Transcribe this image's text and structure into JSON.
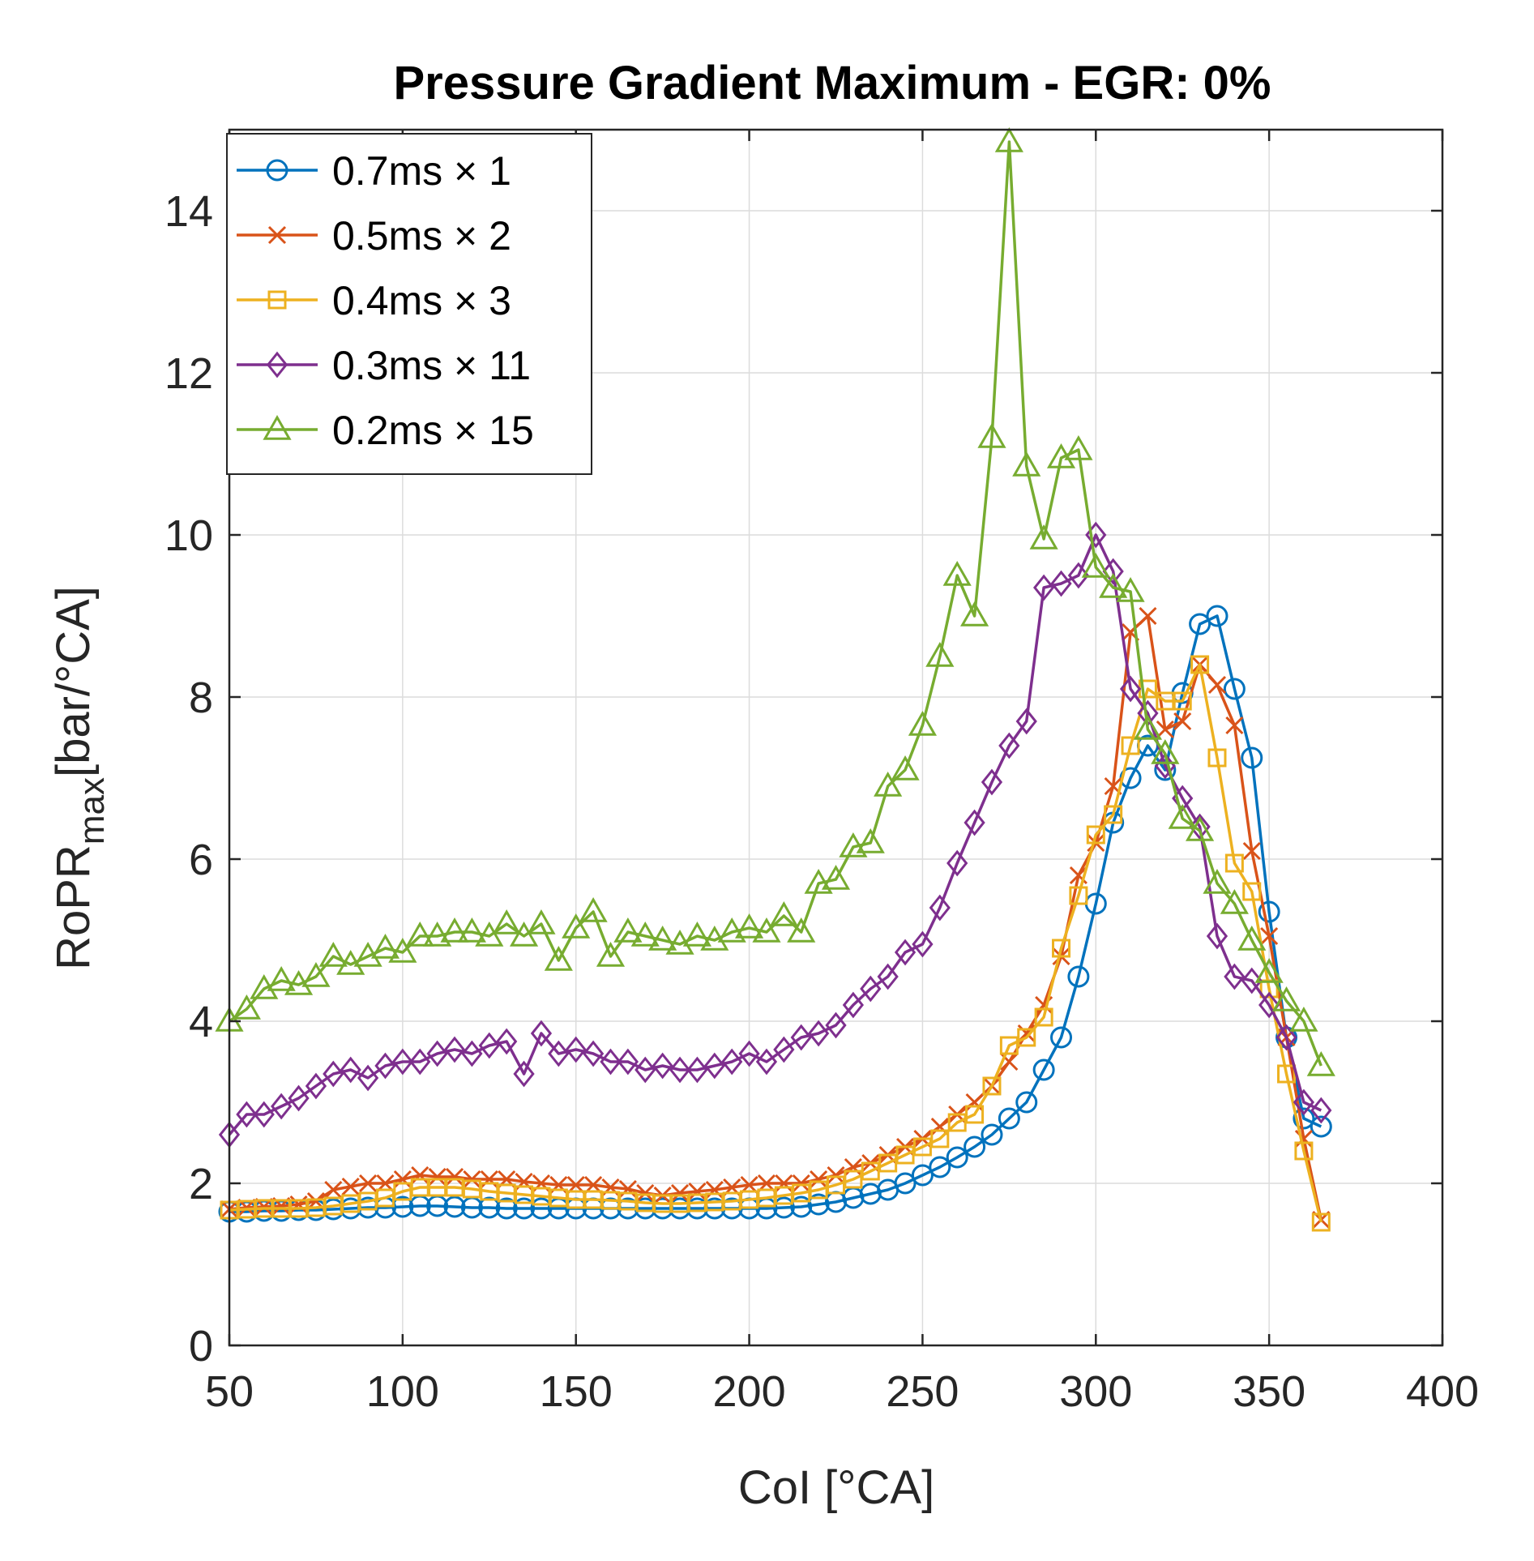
{
  "chart_data": {
    "type": "line",
    "title": "Pressure Gradient Maximum - EGR: 0%",
    "xlabel": "CoI [°CA]",
    "ylabel_main": "RoPR",
    "ylabel_sub": "max",
    "ylabel_unit": "[bar/°CA]",
    "xlim": [
      50,
      400
    ],
    "ylim": [
      0,
      15
    ],
    "xticks": [
      50,
      100,
      150,
      200,
      250,
      300,
      350,
      400
    ],
    "yticks": [
      0,
      2,
      4,
      6,
      8,
      10,
      12,
      14
    ],
    "grid": true,
    "legend_position": "top-left",
    "series": [
      {
        "name": "0.7ms × 1",
        "color": "#0072BD",
        "marker": "circle",
        "x": [
          50,
          55,
          60,
          65,
          70,
          75,
          80,
          85,
          90,
          95,
          100,
          105,
          110,
          115,
          120,
          125,
          130,
          135,
          140,
          145,
          150,
          155,
          160,
          165,
          170,
          175,
          180,
          185,
          190,
          195,
          200,
          205,
          210,
          215,
          220,
          225,
          230,
          235,
          240,
          245,
          250,
          255,
          260,
          265,
          270,
          275,
          280,
          285,
          290,
          295,
          300,
          305,
          310,
          315,
          320,
          325,
          330,
          335,
          340,
          345,
          350,
          355,
          360,
          365
        ],
        "y": [
          1.65,
          1.65,
          1.66,
          1.66,
          1.67,
          1.67,
          1.68,
          1.69,
          1.7,
          1.7,
          1.71,
          1.72,
          1.72,
          1.71,
          1.7,
          1.7,
          1.69,
          1.69,
          1.69,
          1.69,
          1.69,
          1.69,
          1.69,
          1.69,
          1.69,
          1.69,
          1.69,
          1.69,
          1.69,
          1.69,
          1.69,
          1.69,
          1.7,
          1.71,
          1.74,
          1.77,
          1.82,
          1.87,
          1.92,
          2.0,
          2.1,
          2.2,
          2.32,
          2.45,
          2.6,
          2.8,
          3.0,
          3.4,
          3.8,
          4.55,
          5.45,
          6.45,
          7.0,
          7.4,
          7.1,
          8.05,
          8.9,
          9.0,
          8.1,
          7.25,
          5.35,
          3.8,
          2.8,
          2.7
        ]
      },
      {
        "name": "0.5ms × 2",
        "color": "#D95319",
        "marker": "x",
        "x": [
          50,
          55,
          60,
          65,
          70,
          75,
          80,
          85,
          90,
          95,
          100,
          105,
          110,
          115,
          120,
          125,
          130,
          135,
          140,
          145,
          150,
          155,
          160,
          165,
          170,
          175,
          180,
          185,
          190,
          195,
          200,
          205,
          210,
          215,
          220,
          225,
          230,
          235,
          240,
          245,
          250,
          255,
          260,
          265,
          270,
          275,
          280,
          285,
          290,
          295,
          300,
          305,
          310,
          315,
          320,
          325,
          330,
          335,
          340,
          345,
          350,
          355,
          360,
          365
        ],
        "y": [
          1.68,
          1.7,
          1.71,
          1.72,
          1.74,
          1.78,
          1.92,
          1.96,
          2.0,
          2.0,
          2.05,
          2.1,
          2.08,
          2.08,
          2.05,
          2.05,
          2.05,
          2.02,
          2.0,
          1.98,
          1.98,
          1.98,
          1.95,
          1.93,
          1.88,
          1.85,
          1.88,
          1.9,
          1.92,
          1.95,
          1.98,
          2.0,
          2.0,
          2.0,
          2.05,
          2.1,
          2.2,
          2.25,
          2.35,
          2.45,
          2.55,
          2.7,
          2.85,
          3.0,
          3.2,
          3.5,
          3.85,
          4.2,
          4.8,
          5.8,
          6.2,
          6.9,
          8.8,
          9.0,
          7.6,
          7.7,
          8.4,
          8.15,
          7.65,
          6.1,
          5.05,
          3.8,
          2.55,
          1.55
        ]
      },
      {
        "name": "0.4ms × 3",
        "color": "#EDB120",
        "marker": "square",
        "x": [
          50,
          55,
          60,
          65,
          70,
          75,
          80,
          85,
          90,
          95,
          100,
          105,
          110,
          115,
          120,
          125,
          130,
          135,
          140,
          145,
          150,
          155,
          160,
          165,
          170,
          175,
          180,
          185,
          190,
          195,
          200,
          205,
          210,
          215,
          220,
          225,
          230,
          235,
          240,
          245,
          250,
          255,
          260,
          265,
          270,
          275,
          280,
          285,
          290,
          295,
          300,
          305,
          310,
          315,
          320,
          325,
          330,
          335,
          340,
          345,
          350,
          355,
          360,
          365
        ],
        "y": [
          1.67,
          1.68,
          1.69,
          1.69,
          1.69,
          1.7,
          1.72,
          1.75,
          1.78,
          1.82,
          1.9,
          1.95,
          1.95,
          1.95,
          1.93,
          1.9,
          1.88,
          1.86,
          1.84,
          1.82,
          1.8,
          1.8,
          1.79,
          1.78,
          1.76,
          1.75,
          1.75,
          1.76,
          1.77,
          1.78,
          1.8,
          1.82,
          1.85,
          1.88,
          1.92,
          1.98,
          2.05,
          2.15,
          2.25,
          2.35,
          2.45,
          2.55,
          2.75,
          2.85,
          3.2,
          3.7,
          3.8,
          4.05,
          4.9,
          5.55,
          6.3,
          6.55,
          7.4,
          8.1,
          7.95,
          7.95,
          8.4,
          7.25,
          5.95,
          5.6,
          4.4,
          3.35,
          2.4,
          1.52
        ]
      },
      {
        "name": "0.3ms × 11",
        "color": "#7E2F8E",
        "marker": "diamond",
        "x": [
          50,
          55,
          60,
          65,
          70,
          75,
          80,
          85,
          90,
          95,
          100,
          105,
          110,
          115,
          120,
          125,
          130,
          135,
          140,
          145,
          150,
          155,
          160,
          165,
          170,
          175,
          180,
          185,
          190,
          195,
          200,
          205,
          210,
          215,
          220,
          225,
          230,
          235,
          240,
          245,
          250,
          255,
          260,
          265,
          270,
          275,
          280,
          285,
          290,
          295,
          300,
          305,
          310,
          315,
          320,
          325,
          330,
          335,
          340,
          345,
          350,
          355,
          360,
          365
        ],
        "y": [
          2.6,
          2.85,
          2.85,
          2.95,
          3.05,
          3.2,
          3.35,
          3.4,
          3.3,
          3.45,
          3.5,
          3.5,
          3.6,
          3.65,
          3.6,
          3.7,
          3.75,
          3.35,
          3.85,
          3.6,
          3.65,
          3.6,
          3.5,
          3.5,
          3.4,
          3.45,
          3.4,
          3.4,
          3.45,
          3.5,
          3.6,
          3.5,
          3.65,
          3.8,
          3.85,
          3.95,
          4.2,
          4.4,
          4.55,
          4.85,
          4.95,
          5.4,
          5.95,
          6.45,
          6.95,
          7.4,
          7.7,
          9.35,
          9.4,
          9.5,
          10.0,
          9.55,
          8.1,
          7.8,
          7.15,
          6.75,
          6.4,
          5.05,
          4.55,
          4.5,
          4.2,
          3.8,
          3.0,
          2.9
        ]
      },
      {
        "name": "0.2ms × 15",
        "color": "#77AC30",
        "marker": "triangle",
        "x": [
          50,
          55,
          60,
          65,
          70,
          75,
          80,
          85,
          90,
          95,
          100,
          105,
          110,
          115,
          120,
          125,
          130,
          135,
          140,
          145,
          150,
          155,
          160,
          165,
          170,
          175,
          180,
          185,
          190,
          195,
          200,
          205,
          210,
          215,
          220,
          225,
          230,
          235,
          240,
          245,
          250,
          255,
          260,
          265,
          270,
          275,
          280,
          285,
          290,
          295,
          300,
          305,
          310,
          315,
          320,
          325,
          330,
          335,
          340,
          345,
          350,
          355,
          360,
          365
        ],
        "y": [
          4.0,
          4.15,
          4.4,
          4.5,
          4.45,
          4.55,
          4.8,
          4.7,
          4.8,
          4.9,
          4.85,
          5.05,
          5.05,
          5.1,
          5.1,
          5.05,
          5.2,
          5.05,
          5.2,
          4.75,
          5.15,
          5.35,
          4.8,
          5.1,
          5.05,
          5.0,
          4.95,
          5.05,
          5.0,
          5.1,
          5.15,
          5.1,
          5.3,
          5.1,
          5.7,
          5.75,
          6.15,
          6.2,
          6.9,
          7.1,
          7.65,
          8.5,
          9.5,
          9.0,
          11.2,
          14.85,
          10.85,
          9.95,
          10.95,
          11.05,
          9.6,
          9.35,
          9.3,
          7.6,
          7.3,
          6.5,
          6.35,
          5.7,
          5.45,
          5.0,
          4.6,
          4.25,
          4.0,
          3.45
        ]
      }
    ]
  }
}
